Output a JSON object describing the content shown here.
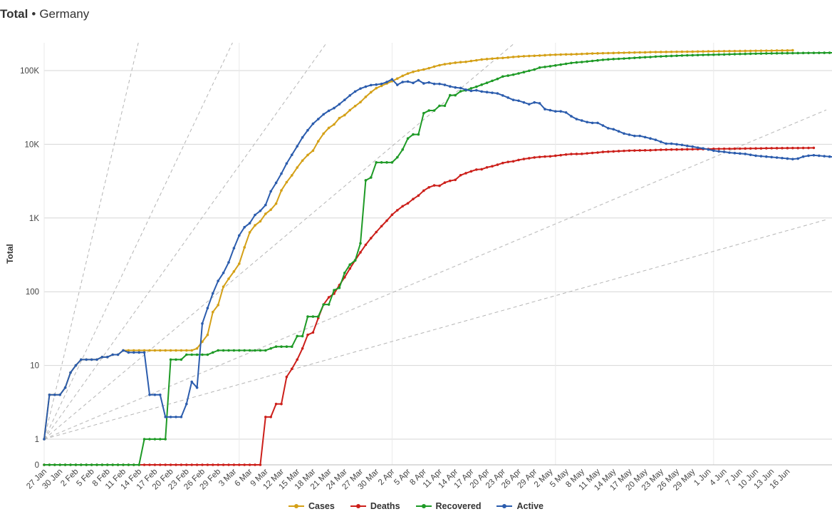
{
  "header": {
    "title_bold": "Total",
    "separator": "•",
    "title_rest": "Germany"
  },
  "chart_data": {
    "type": "line",
    "title": "Total • Germany",
    "xlabel": "",
    "ylabel": "Total",
    "yscale": "log",
    "ylim": [
      0,
      250000
    ],
    "yticks": [
      0,
      1,
      10,
      100,
      1000,
      10000,
      100000
    ],
    "yticklabels": [
      "0",
      "1",
      "10",
      "100",
      "1K",
      "10K",
      "100K"
    ],
    "x_start": "27 Jan",
    "x_end": "18 Jun",
    "xticklabels": [
      "27 Jan",
      "30 Jan",
      "2 Feb",
      "5 Feb",
      "8 Feb",
      "11 Feb",
      "14 Feb",
      "17 Feb",
      "20 Feb",
      "23 Feb",
      "26 Feb",
      "29 Feb",
      "3 Mar",
      "6 Mar",
      "9 Mar",
      "12 Mar",
      "15 Mar",
      "18 Mar",
      "21 Mar",
      "24 Mar",
      "27 Mar",
      "30 Mar",
      "2 Apr",
      "5 Apr",
      "8 Apr",
      "11 Apr",
      "14 Apr",
      "17 Apr",
      "20 Apr",
      "23 Apr",
      "26 Apr",
      "29 Apr",
      "2 May",
      "5 May",
      "8 May",
      "11 May",
      "14 May",
      "17 May",
      "20 May",
      "23 May",
      "26 May",
      "29 May",
      "1 Jun",
      "4 Jun",
      "7 Jun",
      "10 Jun",
      "13 Jun",
      "16 Jun"
    ],
    "grid": true,
    "legend_position": "bottom-center",
    "series": [
      {
        "name": "Cases",
        "color": "#d4a017",
        "values": [
          1,
          4,
          4,
          4,
          5,
          8,
          10,
          12,
          12,
          12,
          12,
          13,
          13,
          14,
          14,
          16,
          16,
          16,
          16,
          16,
          16,
          16,
          16,
          16,
          16,
          16,
          16,
          16,
          16,
          17,
          21,
          26,
          53,
          66,
          117,
          150,
          188,
          240,
          400,
          639,
          795,
          902,
          1139,
          1296,
          1567,
          2369,
          3062,
          3795,
          4838,
          6012,
          7156,
          8198,
          10999,
          13957,
          16662,
          18610,
          22672,
          24873,
          29056,
          32986,
          37323,
          43938,
          50871,
          57695,
          62095,
          66885,
          71808,
          77872,
          84794,
          91159,
          96092,
          100123,
          103374,
          107663,
          113296,
          118181,
          122171,
          124908,
          127854,
          130072,
          131359,
          134753,
          137698,
          141397,
          143342,
          145184,
          147065,
          148291,
          150648,
          153129,
          154999,
          156513,
          157770,
          158758,
          159912,
          161539,
          163009,
          164077,
          164967,
          165745,
          166152,
          167007,
          168162,
          169430,
          170588,
          171324,
          171879,
          172576,
          173171,
          174098,
          174478,
          175233,
          175752,
          176369,
          176551,
          177778,
          178281,
          178570,
          179002,
          179364,
          179710,
          179986,
          180328,
          180600,
          181196,
          181482,
          182028,
          182370,
          182764,
          183271,
          183678,
          183979,
          184193,
          184543,
          184861,
          185416,
          185674,
          186022,
          186269,
          186839,
          187226,
          187518,
          188382
        ]
      },
      {
        "name": "Deaths",
        "color": "#cc1f1a",
        "values": [
          0,
          0,
          0,
          0,
          0,
          0,
          0,
          0,
          0,
          0,
          0,
          0,
          0,
          0,
          0,
          0,
          0,
          0,
          0,
          0,
          0,
          0,
          0,
          0,
          0,
          0,
          0,
          0,
          0,
          0,
          0,
          0,
          0,
          0,
          0,
          0,
          0,
          0,
          0,
          0,
          0,
          0,
          2,
          2,
          3,
          3,
          7,
          9,
          12,
          17,
          26,
          28,
          44,
          67,
          84,
          94,
          123,
          157,
          206,
          267,
          342,
          433,
          533,
          645,
          775,
          920,
          1107,
          1275,
          1444,
          1584,
          1810,
          2016,
          2349,
          2607,
          2767,
          2736,
          3022,
          3194,
          3294,
          3804,
          4052,
          4294,
          4538,
          4586,
          4862,
          5033,
          5279,
          5575,
          5760,
          5877,
          6126,
          6314,
          6467,
          6623,
          6736,
          6812,
          6866,
          6993,
          7119,
          7266,
          7369,
          7395,
          7417,
          7533,
          7634,
          7717,
          7881,
          7935,
          8003,
          8081,
          8144,
          8203,
          8228,
          8261,
          8283,
          8309,
          8372,
          8428,
          8450,
          8487,
          8500,
          8522,
          8540,
          8555,
          8581,
          8600,
          8635,
          8666,
          8674,
          8685,
          8695,
          8711,
          8729,
          8763,
          8772,
          8783,
          8800,
          8831,
          8851,
          8863,
          8875,
          8887,
          8895,
          8899,
          8914,
          8927,
          8940
        ]
      },
      {
        "name": "Recovered",
        "color": "#1e9a26",
        "values": [
          0,
          0,
          0,
          0,
          0,
          0,
          0,
          0,
          0,
          0,
          0,
          0,
          0,
          0,
          0,
          0,
          0,
          0,
          0,
          1,
          1,
          1,
          1,
          1,
          12,
          12,
          12,
          14,
          14,
          14,
          14,
          14,
          15,
          16,
          16,
          16,
          16,
          16,
          16,
          16,
          16,
          16,
          16,
          17,
          18,
          18,
          18,
          18,
          25,
          25,
          46,
          46,
          46,
          67,
          67,
          105,
          113,
          180,
          233,
          266,
          453,
          3243,
          3547,
          5673,
          5673,
          5673,
          5673,
          6658,
          8481,
          12000,
          13600,
          13600,
          26400,
          28700,
          28700,
          33300,
          33300,
          46300,
          46300,
          52407,
          53913,
          57400,
          60300,
          64300,
          68200,
          72600,
          77000,
          83114,
          85400,
          88000,
          91500,
          95200,
          99400,
          103300,
          109800,
          112000,
          114500,
          117400,
          120400,
          123500,
          126900,
          129000,
          130600,
          132700,
          135100,
          137400,
          139900,
          141700,
          143300,
          144400,
          145600,
          147200,
          148700,
          150300,
          151700,
          152600,
          154600,
          155700,
          156900,
          157900,
          158900,
          159900,
          160800,
          161600,
          162300,
          163000,
          163800,
          164200,
          164900,
          165400,
          166400,
          167300,
          167800,
          168500,
          169000,
          169600,
          170200,
          170700,
          171100,
          171600,
          172000,
          172300,
          172600,
          172800,
          173100,
          173300,
          173600,
          173800,
          174100,
          174300,
          174500
        ]
      },
      {
        "name": "Active",
        "color": "#2b5cad",
        "values": [
          1,
          4,
          4,
          4,
          5,
          8,
          10,
          12,
          12,
          12,
          12,
          13,
          13,
          14,
          14,
          16,
          15,
          15,
          15,
          15,
          4,
          4,
          4,
          2,
          2,
          2,
          2,
          3,
          6,
          5,
          37,
          60,
          95,
          140,
          180,
          250,
          390,
          580,
          750,
          850,
          1100,
          1250,
          1500,
          2300,
          3000,
          4000,
          5500,
          7200,
          9400,
          12400,
          15500,
          19000,
          22000,
          25500,
          28500,
          31000,
          35000,
          40000,
          46000,
          52000,
          57000,
          60500,
          63500,
          64500,
          66000,
          70000,
          76000,
          64000,
          70000,
          71000,
          68000,
          74000,
          67000,
          69000,
          66000,
          66000,
          64000,
          61000,
          59000,
          58000,
          55000,
          53000,
          54000,
          52000,
          51000,
          50000,
          49000,
          46000,
          43000,
          40000,
          39000,
          37000,
          35000,
          37000,
          36000,
          30000,
          29000,
          28000,
          28000,
          27000,
          24000,
          22000,
          21000,
          20000,
          19500,
          19500,
          18000,
          16500,
          16000,
          15000,
          14000,
          13500,
          13000,
          13000,
          12500,
          12000,
          11500,
          10800,
          10200,
          10200,
          10000,
          9800,
          9500,
          9300,
          9000,
          8800,
          8500,
          8200,
          8000,
          7900,
          7700,
          7600,
          7500,
          7400,
          7200,
          7000,
          6900,
          6800,
          6700,
          6600,
          6500,
          6400,
          6300,
          6400,
          6800,
          7000,
          7100,
          7000,
          6900,
          6800,
          6700
        ]
      }
    ],
    "reference_lines": [
      {
        "kind": "doubling_every_days",
        "days": 1
      },
      {
        "kind": "doubling_every_days",
        "days": 2
      },
      {
        "kind": "doubling_every_days",
        "days": 3
      },
      {
        "kind": "doubling_every_days",
        "days": 5
      },
      {
        "kind": "doubling_every_days",
        "days": 10
      },
      {
        "kind": "doubling_every_days",
        "days": 15
      }
    ]
  }
}
